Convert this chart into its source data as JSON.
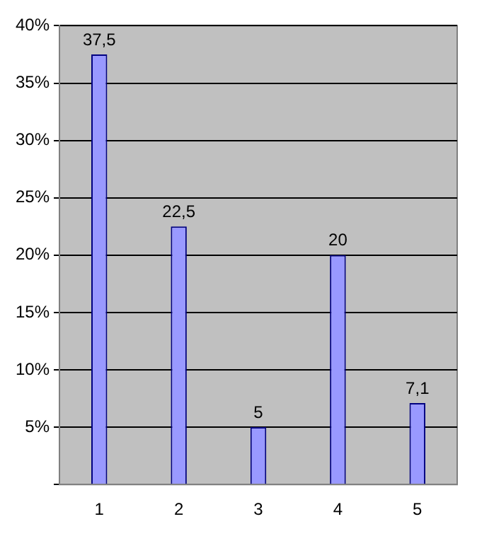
{
  "chart_data": {
    "type": "bar",
    "categories": [
      "1",
      "2",
      "3",
      "4",
      "5"
    ],
    "values": [
      37.5,
      22.5,
      5,
      20,
      7.1
    ],
    "value_labels": [
      "37,5",
      "22,5",
      "5",
      "20",
      "7,1"
    ],
    "color": "#9999ff",
    "ylim": [
      0,
      40
    ],
    "yticks": [
      {
        "value": 0,
        "label": null
      },
      {
        "value": 5,
        "label": "5%"
      },
      {
        "value": 10,
        "label": "10%"
      },
      {
        "value": 15,
        "label": "15%"
      },
      {
        "value": 20,
        "label": "20%"
      },
      {
        "value": 25,
        "label": "25%"
      },
      {
        "value": 30,
        "label": "30%"
      },
      {
        "value": 35,
        "label": "35%"
      },
      {
        "value": 40,
        "label": "40%"
      }
    ],
    "grid": "y",
    "legend": false
  }
}
